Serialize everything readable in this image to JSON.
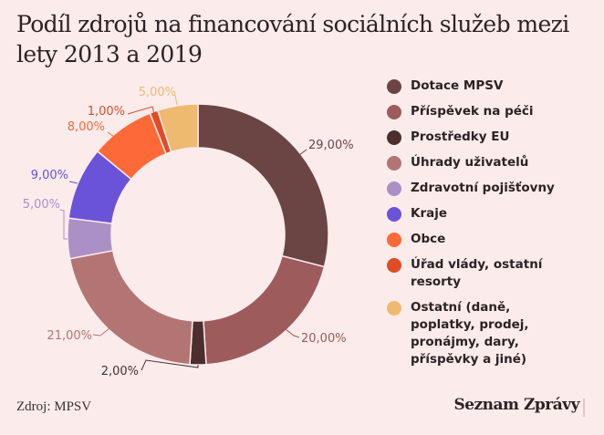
{
  "title": "Podíl zdrojů na financování sociálních služeb mezi lety 2013 a 2019",
  "source": "Zdroj: MPSV",
  "brand": "Seznam Zprávy",
  "chart_data": {
    "type": "pie",
    "variant": "donut",
    "title": "Podíl zdrojů na financování sociálních služeb mezi lety 2013 a 2019",
    "legend_position": "right",
    "categories": [
      "Dotace MPSV",
      "Příspěvek na péči",
      "Prostředky EU",
      "Úhrady uživatelů",
      "Zdravotní pojišťovny",
      "Kraje",
      "Obce",
      "Úřad vlády, ostatní resorty",
      "Ostatní (daně, poplatky, prodej, pronájmy, dary, příspěvky a jiné)"
    ],
    "values": [
      29,
      20,
      2,
      21,
      5,
      9,
      8,
      1,
      5
    ],
    "labels": [
      "29,00%",
      "20,00%",
      "2,00%",
      "21,00%",
      "5,00%",
      "9,00%",
      "8,00%",
      "1,00%",
      "5,00%"
    ],
    "colors": [
      "#6b4544",
      "#9e5b5c",
      "#4b2f2f",
      "#b37574",
      "#ab90c6",
      "#6a53d9",
      "#fd6a38",
      "#e04c27",
      "#eeba70"
    ],
    "label_colors": [
      "#6b4544",
      "#9e5b5c",
      "#4b2f2f",
      "#b37574",
      "#ab90c6",
      "#6a53d9",
      "#fd6a38",
      "#e04c27",
      "#eeba70"
    ],
    "unit": "%"
  }
}
